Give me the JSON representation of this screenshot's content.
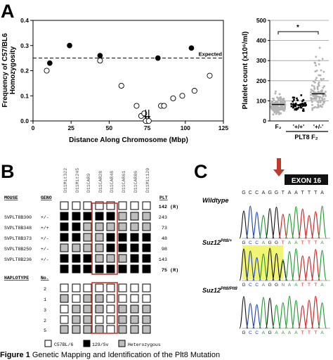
{
  "panels": {
    "a": {
      "letter": "A",
      "scatter": {
        "ylabel_lines": [
          "Frequency of C57/BL6",
          "Homozygosity"
        ],
        "xlabel": "Distance Along Chromosome (Mbp)",
        "expected_label": "Expected",
        "x_ticks": [
          "0",
          "25",
          "50",
          "75",
          "100",
          "125"
        ],
        "y_ticks": [
          "0.0",
          "0.1",
          "0.2",
          "0.3",
          "0.4"
        ]
      },
      "platelet": {
        "ylabel": "Platelet count (x10⁶/ml)",
        "y_ticks": [
          "0",
          "100",
          "200",
          "300",
          "400",
          "500"
        ],
        "significance": "*",
        "group_labels": [
          "F₂",
          "'+/+'",
          "'+/-'"
        ],
        "group_caption": "PLT8 F₂"
      }
    },
    "b": {
      "letter": "B",
      "markers": [
        "D11Mit322",
        "D11Mit245",
        "D11CAR9",
        "D11CAR28",
        "D11CAR48",
        "D11CAR61",
        "D11CAR86",
        "D11Mit120"
      ],
      "mouse_header": "MOUSE",
      "geno_header": "GENO",
      "plt_header": "PLT",
      "haplotype_header": "HAPLOTYPE",
      "no_header": "No.",
      "mice": [
        {
          "name": "",
          "geno": "",
          "plt": "142",
          "ref": "(R)",
          "cells": [
            "w",
            "w",
            "w",
            "w",
            "w",
            "w",
            "w",
            "w"
          ]
        },
        {
          "name": "SVPLT8B300",
          "geno": "+/-",
          "plt": "243",
          "ref": "",
          "cells": [
            "b",
            "b",
            "b",
            "b",
            "b",
            "g",
            "g",
            "g"
          ]
        },
        {
          "name": "SVPLT8B348",
          "geno": "+/+",
          "plt": "73",
          "ref": "",
          "cells": [
            "b",
            "b",
            "g",
            "g",
            "g",
            "g",
            "g",
            "g"
          ]
        },
        {
          "name": "SVPLT8B373",
          "geno": "+/-",
          "plt": "48",
          "ref": "",
          "cells": [
            "b",
            "b",
            "g",
            "g",
            "b",
            "b",
            "b",
            "b"
          ]
        },
        {
          "name": "SVPLT8B250",
          "geno": "+/-",
          "plt": "98",
          "ref": "",
          "cells": [
            "g",
            "g",
            "g",
            "g",
            "b",
            "b",
            "b",
            "b"
          ]
        },
        {
          "name": "SVPLT8B236",
          "geno": "+/-",
          "plt": "143",
          "ref": "",
          "cells": [
            "b",
            "b",
            "b",
            "g",
            "g",
            "g",
            "b",
            "b"
          ]
        },
        {
          "name": "",
          "geno": "",
          "plt": "75",
          "ref": "(R)",
          "cells": [
            "b",
            "b",
            "b",
            "b",
            "b",
            "b",
            "b",
            "b"
          ]
        }
      ],
      "haplotypes": [
        {
          "no": "2",
          "cells": [
            "w",
            "w",
            "w",
            "w",
            "w",
            "w",
            "w",
            "w"
          ]
        },
        {
          "no": "1",
          "cells": [
            "g",
            "w",
            "g",
            "g",
            "w",
            "w",
            "w",
            "w"
          ]
        },
        {
          "no": "3",
          "cells": [
            "w",
            "g",
            "g",
            "g",
            "w",
            "g",
            "g",
            "g"
          ]
        },
        {
          "no": "2",
          "cells": [
            "w",
            "g",
            "g",
            "w",
            "w",
            "g",
            "g",
            "g"
          ]
        },
        {
          "no": "5",
          "cells": [
            "g",
            "g",
            "g",
            "g",
            "w",
            "g",
            "g",
            "g"
          ]
        }
      ],
      "legend": [
        "C57BL/6",
        "129/Sv",
        "Heterozygous"
      ]
    },
    "c": {
      "letter": "C",
      "exon_label": "EXON 16",
      "seq_top": [
        "G",
        "C",
        "C",
        "A",
        "G",
        "G",
        "T",
        "A",
        "A",
        "T",
        "T",
        "T",
        "A"
      ],
      "tracks": [
        {
          "label": "Wildtype",
          "sup": "",
          "seq": [
            "G",
            "C",
            "C",
            "A",
            "G",
            "G",
            "T",
            "A",
            "A",
            "T",
            "T",
            "T",
            "A"
          ],
          "highlight": false
        },
        {
          "label": "Suz12",
          "sup": "Plt8/+",
          "seq": [
            "G",
            "C",
            "C",
            "A",
            "G",
            "G",
            "N",
            "A",
            "A",
            "T",
            "T",
            "T",
            "A"
          ],
          "highlight": true
        },
        {
          "label": "Suz12",
          "sup": "Plt8/Plt8",
          "seq": [
            "G",
            "C",
            "C",
            "A",
            "G",
            "A",
            "A",
            "A",
            "A",
            "T",
            "T",
            "T",
            "A"
          ],
          "highlight": false
        }
      ]
    }
  },
  "caption": {
    "label": "Figure 1",
    "text": "Genetic Mapping and Identification of the Plt8 Mutation"
  },
  "chart_data": [
    {
      "type": "scatter",
      "title": "",
      "xlabel": "Distance Along Chromosome (Mbp)",
      "ylabel": "Frequency of C57/BL6 Homozygosity",
      "xlim": [
        0,
        125
      ],
      "ylim": [
        0,
        0.4
      ],
      "grid": false,
      "reference_line": {
        "label": "Expected",
        "y": 0.25
      },
      "series": [
        {
          "marker": "filled",
          "points": [
            [
              11,
              0.23
            ],
            [
              24,
              0.3
            ],
            [
              44,
              0.26
            ],
            [
              82,
              0.25
            ],
            [
              104,
              0.29
            ]
          ]
        },
        {
          "marker": "open",
          "points": [
            [
              9,
              0.2
            ],
            [
              44,
              0.24
            ],
            [
              58,
              0.14
            ],
            [
              68,
              0.06
            ],
            [
              71,
              0.02
            ],
            [
              73,
              0.03
            ],
            [
              74,
              0.0
            ],
            [
              76,
              0.0
            ],
            [
              84,
              0.06
            ],
            [
              86,
              0.06
            ],
            [
              92,
              0.09
            ],
            [
              98,
              0.1
            ],
            [
              106,
              0.12
            ],
            [
              116,
              0.18
            ]
          ]
        }
      ],
      "annotations": [
        {
          "type": "arrow",
          "x": 74
        },
        {
          "type": "arrow",
          "x": 76
        }
      ]
    },
    {
      "type": "scatter",
      "title": "",
      "ylabel": "Platelet count (x10⁶/ml)",
      "ylim": [
        0,
        500
      ],
      "grid": true,
      "categories": [
        "F₂",
        "'+/+'",
        "'+/-'"
      ],
      "group_caption": "PLT8 F₂",
      "series": [
        {
          "name": "F₂",
          "n": 160,
          "median": 82,
          "range": [
            20,
            175
          ],
          "color": "#b3b3b3"
        },
        {
          "name": "'+/+'",
          "n": 50,
          "median": 80,
          "range": [
            30,
            165
          ],
          "color": "#000000"
        },
        {
          "name": "'+/-'",
          "n": 120,
          "median": 135,
          "range": [
            40,
            485
          ],
          "color": "#b3b3b3"
        }
      ],
      "significance": {
        "between": [
          "F₂",
          "'+/-'"
        ],
        "label": "*"
      }
    }
  ]
}
